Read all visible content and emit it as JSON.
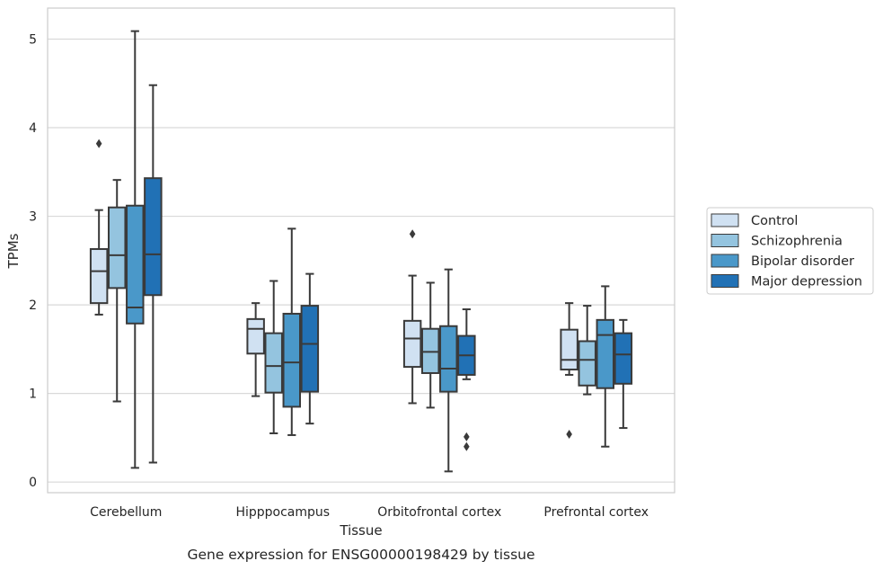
{
  "chart_data": {
    "type": "box",
    "caption": "Gene expression for ENSG00000198429 by tissue",
    "xlabel": "Tissue",
    "ylabel": "TPMs",
    "ylim": [
      -0.12,
      5.35
    ],
    "yticks": [
      0,
      1,
      2,
      3,
      4,
      5
    ],
    "grid": "horizontal",
    "legend_position": "right",
    "categories": [
      "Cerebellum",
      "Hipppocampus",
      "Orbitofrontal cortex",
      "Prefrontal cortex"
    ],
    "series": [
      {
        "name": "Control",
        "color": "#d0e1f2",
        "boxes": [
          {
            "whislo": 1.89,
            "q1": 2.02,
            "med": 2.38,
            "q3": 2.63,
            "whishi": 3.07,
            "fliers": [
              3.82
            ]
          },
          {
            "whislo": 0.97,
            "q1": 1.45,
            "med": 1.73,
            "q3": 1.84,
            "whishi": 2.02,
            "fliers": []
          },
          {
            "whislo": 0.89,
            "q1": 1.3,
            "med": 1.62,
            "q3": 1.82,
            "whishi": 2.33,
            "fliers": [
              2.8
            ]
          },
          {
            "whislo": 1.21,
            "q1": 1.27,
            "med": 1.38,
            "q3": 1.72,
            "whishi": 2.02,
            "fliers": [
              0.54
            ]
          }
        ]
      },
      {
        "name": "Schizophrenia",
        "color": "#94c4df",
        "boxes": [
          {
            "whislo": 0.91,
            "q1": 2.19,
            "med": 2.56,
            "q3": 3.1,
            "whishi": 3.41,
            "fliers": []
          },
          {
            "whislo": 0.55,
            "q1": 1.01,
            "med": 1.31,
            "q3": 1.68,
            "whishi": 2.27,
            "fliers": []
          },
          {
            "whislo": 0.84,
            "q1": 1.23,
            "med": 1.47,
            "q3": 1.73,
            "whishi": 2.25,
            "fliers": []
          },
          {
            "whislo": 0.99,
            "q1": 1.09,
            "med": 1.38,
            "q3": 1.59,
            "whishi": 1.99,
            "fliers": []
          }
        ]
      },
      {
        "name": "Bipolar disorder",
        "color": "#4a98c9",
        "boxes": [
          {
            "whislo": 0.16,
            "q1": 1.79,
            "med": 1.97,
            "q3": 3.12,
            "whishi": 5.09,
            "fliers": []
          },
          {
            "whislo": 0.53,
            "q1": 0.85,
            "med": 1.35,
            "q3": 1.9,
            "whishi": 2.86,
            "fliers": []
          },
          {
            "whislo": 0.12,
            "q1": 1.02,
            "med": 1.28,
            "q3": 1.76,
            "whishi": 2.4,
            "fliers": []
          },
          {
            "whislo": 0.4,
            "q1": 1.06,
            "med": 1.66,
            "q3": 1.83,
            "whishi": 2.21,
            "fliers": []
          }
        ]
      },
      {
        "name": "Major depression",
        "color": "#2171b5",
        "boxes": [
          {
            "whislo": 0.22,
            "q1": 2.11,
            "med": 2.57,
            "q3": 3.43,
            "whishi": 4.48,
            "fliers": []
          },
          {
            "whislo": 0.66,
            "q1": 1.02,
            "med": 1.56,
            "q3": 1.99,
            "whishi": 2.35,
            "fliers": []
          },
          {
            "whislo": 1.16,
            "q1": 1.21,
            "med": 1.43,
            "q3": 1.65,
            "whishi": 1.95,
            "fliers": [
              0.51,
              0.4
            ]
          },
          {
            "whislo": 0.61,
            "q1": 1.11,
            "med": 1.44,
            "q3": 1.68,
            "whishi": 1.83,
            "fliers": []
          }
        ]
      }
    ]
  }
}
